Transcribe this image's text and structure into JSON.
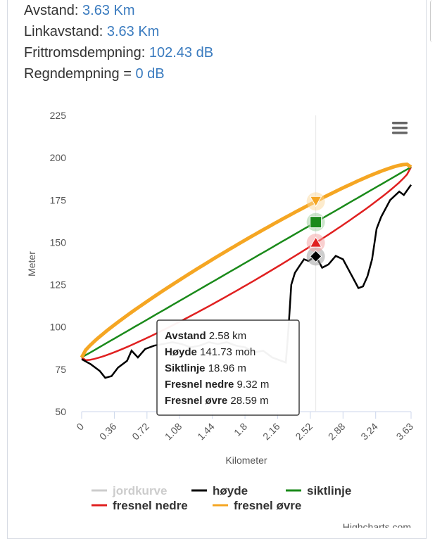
{
  "info": [
    {
      "label": "Avstand: ",
      "value": "3.63 Km"
    },
    {
      "label": "Linkavstand: ",
      "value": "3.63 Km"
    },
    {
      "label": "Frittromsdempning: ",
      "value": "102.43 dB"
    },
    {
      "label": "Regndempning = ",
      "value": "0 dB"
    }
  ],
  "chart_data": {
    "type": "line",
    "xlabel": "Kilometer",
    "ylabel": "Meter",
    "xlim": [
      0,
      3.63
    ],
    "ylim": [
      50,
      225
    ],
    "xticks": [
      "0",
      "0.36",
      "0.72",
      "1.08",
      "1.44",
      "1.8",
      "2.16",
      "2.52",
      "2.88",
      "3.24",
      "3.63"
    ],
    "yticks": [
      "50",
      "75",
      "100",
      "125",
      "150",
      "175",
      "200",
      "225"
    ],
    "colors": {
      "jordkurve": "#cccccc",
      "hoyde": "#000000",
      "siktlinje": "#1a8a1a",
      "fresnel_nedre": "#e02020",
      "fresnel_ovre": "#f5a623"
    },
    "legend": [
      "jordkurve",
      "høyde",
      "siktlinje",
      "fresnel nedre",
      "fresnel øvre"
    ],
    "siktlinje": {
      "start": 82,
      "end": 194.5
    },
    "fresnel_max_radius": 13.5,
    "hoyde": {
      "x": [
        0,
        0.1,
        0.2,
        0.26,
        0.33,
        0.4,
        0.5,
        0.55,
        0.62,
        0.7,
        0.8,
        0.9,
        1.0,
        1.1,
        1.2,
        1.3,
        1.4,
        1.5,
        1.6,
        1.7,
        1.8,
        1.9,
        2.0,
        2.1,
        2.2,
        2.25,
        2.28,
        2.31,
        2.35,
        2.4,
        2.45,
        2.5,
        2.58,
        2.65,
        2.72,
        2.8,
        2.88,
        2.95,
        3.0,
        3.05,
        3.1,
        3.15,
        3.2,
        3.25,
        3.3,
        3.4,
        3.5,
        3.55,
        3.63
      ],
      "y": [
        81,
        78,
        74,
        70,
        71,
        76,
        80,
        86,
        82,
        87,
        89,
        90,
        91,
        90,
        88,
        89,
        91,
        90,
        91,
        89,
        88,
        85,
        86,
        82,
        80,
        79,
        100,
        125,
        132,
        136,
        140,
        139,
        142,
        135,
        137,
        142,
        140,
        133,
        128,
        123,
        124,
        130,
        140,
        158,
        165,
        175,
        180,
        178,
        184
      ]
    },
    "hover_x": 2.58,
    "tooltip": [
      {
        "k": "Avstand",
        "v": " 2.58 km"
      },
      {
        "k": "Høyde",
        "v": " 141.73 moh"
      },
      {
        "k": "Siktlinje",
        "v": " 18.96 m"
      },
      {
        "k": "Fresnel nedre",
        "v": " 9.32 m"
      },
      {
        "k": "Fresnel øvre",
        "v": " 28.59 m"
      }
    ],
    "credits": "Highcharts.com"
  }
}
